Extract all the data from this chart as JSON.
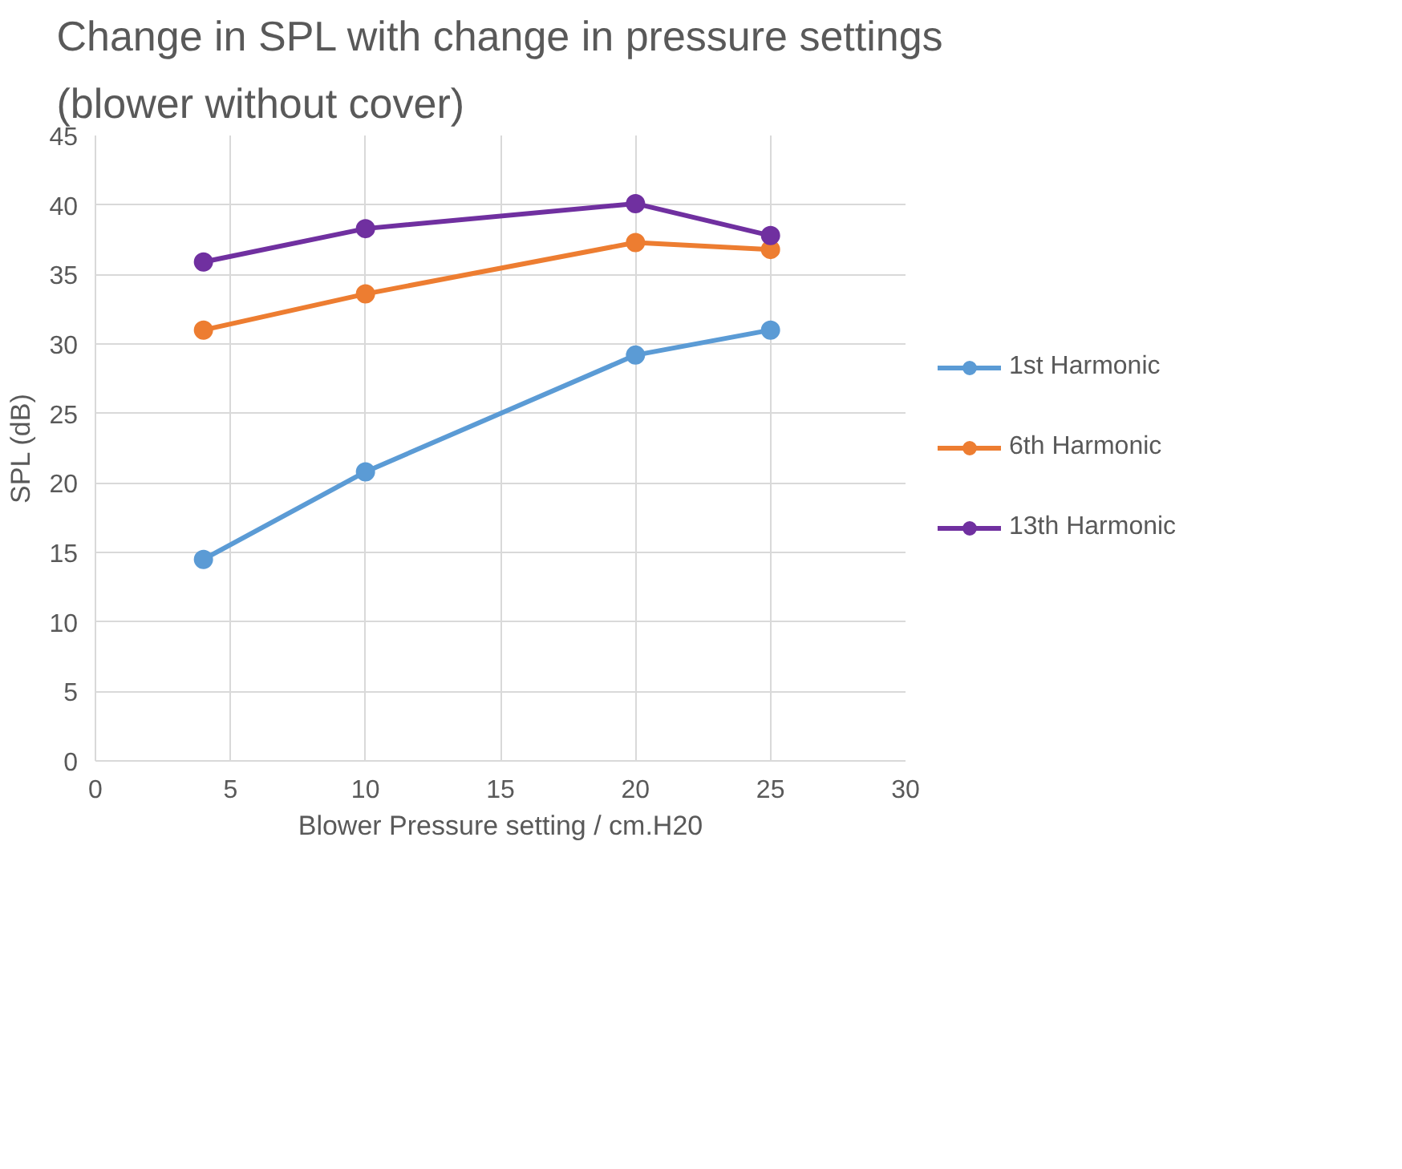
{
  "chart_data": {
    "type": "line",
    "title": "Change in SPL with change in pressure settings\n(blower without cover)",
    "xlabel": "Blower Pressure setting / cm.H20",
    "ylabel": "SPL (dB)",
    "x": [
      4,
      10,
      20,
      25
    ],
    "series": [
      {
        "name": "1st Harmonic",
        "color": "#5b9bd5",
        "values": [
          14.5,
          20.8,
          29.2,
          31.0
        ]
      },
      {
        "name": "6th Harmonic",
        "color": "#ed7d31",
        "values": [
          31.0,
          33.6,
          37.3,
          36.8
        ]
      },
      {
        "name": "13th Harmonic",
        "color": "#7030a0",
        "values": [
          35.9,
          38.3,
          40.1,
          37.8
        ]
      }
    ],
    "xlim": [
      0,
      30
    ],
    "xticks": [
      0,
      5,
      10,
      15,
      20,
      25,
      30
    ],
    "ylim": [
      0,
      45
    ],
    "yticks": [
      0,
      5,
      10,
      15,
      20,
      25,
      30,
      35,
      40,
      45
    ],
    "grid": true,
    "legend": "right",
    "marker": "circle",
    "line_style": "solid"
  }
}
